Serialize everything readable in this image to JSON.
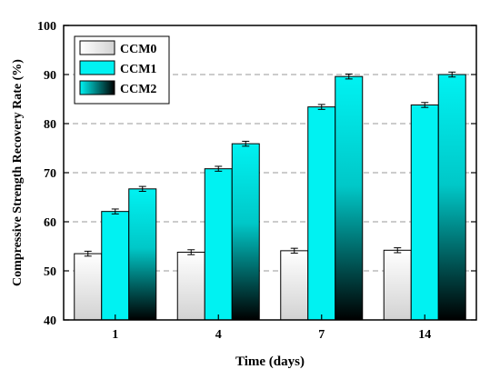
{
  "chart_data": {
    "type": "bar",
    "title": "",
    "xlabel": "Time (days)",
    "ylabel": "Compressive Strength Recovery Rate (%)",
    "categories": [
      "1",
      "4",
      "7",
      "14"
    ],
    "ylim": [
      40,
      100
    ],
    "yticks": [
      "40",
      "50",
      "60",
      "70",
      "80",
      "90",
      "100"
    ],
    "grid": "horizontal dashed gridlines at each y tick",
    "legend_position": "top-left",
    "series": [
      {
        "name": "CCM0",
        "values": [
          53.5,
          53.8,
          54.1,
          54.2
        ],
        "errors": [
          0.5,
          0.5,
          0.5,
          0.5
        ],
        "fill": "gradient white to light gray"
      },
      {
        "name": "CCM1",
        "values": [
          62.1,
          70.8,
          83.4,
          83.8
        ],
        "errors": [
          0.5,
          0.5,
          0.5,
          0.5
        ],
        "fill": "solid cyan"
      },
      {
        "name": "CCM2",
        "values": [
          66.7,
          75.9,
          89.6,
          90.0
        ],
        "errors": [
          0.5,
          0.5,
          0.5,
          0.5
        ],
        "fill": "gradient cyan to black"
      }
    ]
  },
  "colors": {
    "accent_cyan": "#00f2f2",
    "gridline": "#999999",
    "ccm0_top": "#ffffff",
    "ccm0_bottom": "#d2d2d2",
    "ccm2_bottom": "#000000"
  }
}
